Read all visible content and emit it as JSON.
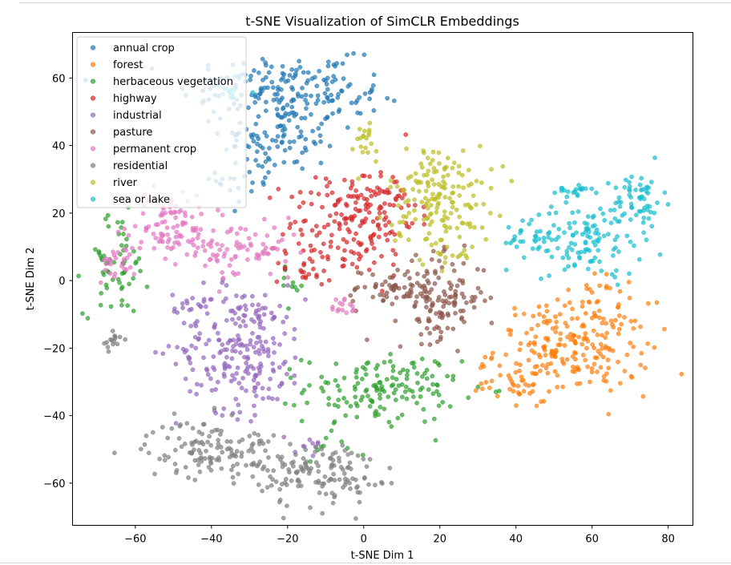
{
  "chart_data": {
    "type": "scatter",
    "title": "t-SNE Visualization of SimCLR Embeddings",
    "xlabel": "t-SNE Dim 1",
    "ylabel": "t-SNE Dim 2",
    "xlim": [
      -76.5,
      86.5
    ],
    "ylim": [
      -72.5,
      73.5
    ],
    "xticks": [
      -60,
      -40,
      -20,
      0,
      20,
      40,
      60,
      80
    ],
    "yticks": [
      -60,
      -40,
      -20,
      0,
      20,
      40,
      60
    ],
    "xtick_labels": [
      "−60",
      "−40",
      "−20",
      "0",
      "20",
      "40",
      "60",
      "80"
    ],
    "ytick_labels": [
      "−60",
      "−40",
      "−20",
      "0",
      "20",
      "40",
      "60"
    ],
    "grid": false,
    "legend_position": "top-left",
    "series": [
      {
        "name": "annual crop",
        "color": "#1f77b4",
        "clusters": [
          [
            -25,
            57,
            14,
            6,
            130
          ],
          [
            -22,
            42,
            9,
            6,
            90
          ],
          [
            -8,
            55,
            7,
            6,
            50
          ],
          [
            -30,
            30,
            5,
            5,
            20
          ]
        ]
      },
      {
        "name": "forest",
        "color": "#ff7f0e",
        "clusters": [
          [
            55,
            -20,
            12,
            8,
            220
          ],
          [
            40,
            -30,
            6,
            3,
            30
          ],
          [
            62,
            -5,
            3,
            4,
            20
          ]
        ]
      },
      {
        "name": "herbaceous vegetation",
        "color": "#2ca02c",
        "clusters": [
          [
            5,
            -32,
            12,
            6,
            150
          ],
          [
            -65,
            5,
            5,
            9,
            60
          ],
          [
            -18,
            -2,
            3,
            3,
            10
          ],
          [
            -10,
            -48,
            3,
            3,
            10
          ]
        ]
      },
      {
        "name": "highway",
        "color": "#d62728",
        "clusters": [
          [
            -3,
            17,
            10,
            9,
            150
          ],
          [
            -15,
            5,
            5,
            4,
            30
          ],
          [
            5,
            25,
            5,
            5,
            40
          ]
        ]
      },
      {
        "name": "industrial",
        "color": "#9467bd",
        "clusters": [
          [
            -32,
            -20,
            10,
            11,
            230
          ],
          [
            -45,
            -7,
            3,
            2,
            15
          ],
          [
            -15,
            -48,
            3,
            2,
            10
          ]
        ]
      },
      {
        "name": "pasture",
        "color": "#8c564b",
        "clusters": [
          [
            20,
            -5,
            7,
            7,
            140
          ],
          [
            5,
            -3,
            6,
            4,
            40
          ]
        ]
      },
      {
        "name": "permanent crop",
        "color": "#e377c2",
        "clusters": [
          [
            -48,
            14,
            8,
            5,
            90
          ],
          [
            -30,
            8,
            8,
            5,
            60
          ],
          [
            -65,
            5,
            3,
            3,
            25
          ],
          [
            -5,
            -8,
            2,
            2,
            15
          ],
          [
            -52,
            22,
            4,
            3,
            25
          ]
        ]
      },
      {
        "name": "residential",
        "color": "#7f7f7f",
        "clusters": [
          [
            -40,
            -50,
            10,
            5,
            130
          ],
          [
            -12,
            -57,
            9,
            6,
            120
          ],
          [
            -66,
            -18,
            1.5,
            2,
            15
          ],
          [
            0,
            -61,
            3,
            1,
            10
          ]
        ]
      },
      {
        "name": "river",
        "color": "#bcbd22",
        "clusters": [
          [
            20,
            25,
            8,
            9,
            160
          ],
          [
            0,
            40,
            3,
            5,
            20
          ],
          [
            22,
            8,
            4,
            2,
            15
          ]
        ]
      },
      {
        "name": "sea or lake",
        "color": "#17becf",
        "clusters": [
          [
            58,
            12,
            9,
            6,
            120
          ],
          [
            72,
            24,
            4,
            5,
            60
          ],
          [
            55,
            27,
            3,
            1,
            20
          ],
          [
            40,
            13,
            3,
            2,
            15
          ],
          [
            -35,
            56,
            3,
            3,
            15
          ]
        ]
      }
    ]
  }
}
